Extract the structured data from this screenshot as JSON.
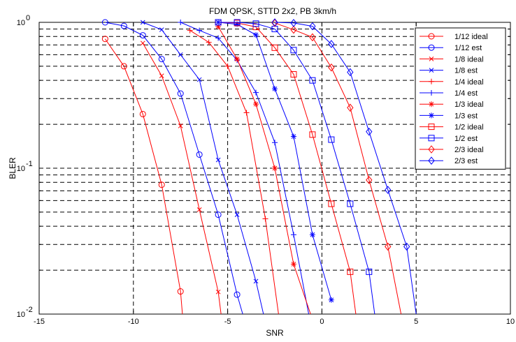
{
  "chart_data": {
    "type": "line",
    "title": "FDM QPSK, STTD 2x2, PB 3km/h",
    "xlabel": "SNR",
    "ylabel": "BLER",
    "xlim": [
      -15,
      10
    ],
    "ylim": [
      0.01,
      1
    ],
    "yscale": "log",
    "xticks": [
      -15,
      -10,
      -5,
      0,
      5,
      10
    ],
    "xtick_labels": [
      "-15",
      "-10",
      "-5",
      "0",
      "5",
      "10"
    ],
    "yticks": [
      0.01,
      0.1,
      1
    ],
    "ytick_labels": [
      {
        "base": "10",
        "exp": "-2"
      },
      {
        "base": "10",
        "exp": "-1"
      },
      {
        "base": "10",
        "exp": "0"
      }
    ],
    "grid": true,
    "legend_position": "top-right",
    "series": [
      {
        "name": "1/12 ideal",
        "color": "#ff0000",
        "marker": "circle",
        "x": [
          -11.5,
          -10.5,
          -9.5,
          -8.5,
          -7.5,
          -7.4
        ],
        "y": [
          0.77,
          0.5,
          0.235,
          0.077,
          0.0143,
          0.01
        ]
      },
      {
        "name": "1/12 est",
        "color": "#0000ff",
        "marker": "circle",
        "x": [
          -11.5,
          -10.5,
          -9.5,
          -8.5,
          -7.5,
          -6.5,
          -5.5,
          -4.5,
          -4.2
        ],
        "y": [
          1.0,
          0.945,
          0.815,
          0.56,
          0.325,
          0.124,
          0.048,
          0.0136,
          0.01
        ]
      },
      {
        "name": "1/8 ideal",
        "color": "#ff0000",
        "marker": "x",
        "x": [
          -9.5,
          -8.5,
          -7.5,
          -6.5,
          -5.5,
          -5.35
        ],
        "y": [
          0.72,
          0.43,
          0.195,
          0.052,
          0.0142,
          0.01
        ]
      },
      {
        "name": "1/8 est",
        "color": "#0000ff",
        "marker": "x",
        "x": [
          -9.5,
          -8.5,
          -7.5,
          -6.5,
          -5.5,
          -4.5,
          -3.5,
          -3.1
        ],
        "y": [
          1.0,
          0.89,
          0.6,
          0.405,
          0.114,
          0.048,
          0.0168,
          0.01
        ]
      },
      {
        "name": "1/4 ideal",
        "color": "#ff0000",
        "marker": "plus",
        "x": [
          -7.0,
          -6.0,
          -5.0,
          -4.0,
          -3.0,
          -2.3
        ],
        "y": [
          0.88,
          0.73,
          0.5,
          0.24,
          0.045,
          0.01
        ]
      },
      {
        "name": "1/4 est",
        "color": "#0000ff",
        "marker": "plus",
        "x": [
          -7.5,
          -6.5,
          -5.5,
          -4.5,
          -3.5,
          -2.5,
          -1.5,
          -0.7
        ],
        "y": [
          1.0,
          0.88,
          0.78,
          0.55,
          0.33,
          0.15,
          0.035,
          0.01
        ]
      },
      {
        "name": "1/3 ideal",
        "color": "#ff0000",
        "marker": "star",
        "x": [
          -5.5,
          -4.5,
          -3.5,
          -2.5,
          -1.5,
          -0.6
        ],
        "y": [
          0.935,
          0.56,
          0.275,
          0.1,
          0.022,
          0.01
        ]
      },
      {
        "name": "1/3 est",
        "color": "#0000ff",
        "marker": "star",
        "x": [
          -5.5,
          -4.5,
          -3.5,
          -2.5,
          -1.5,
          -0.5,
          0.5
        ],
        "y": [
          1.0,
          0.97,
          0.82,
          0.35,
          0.165,
          0.035,
          0.0125
        ]
      },
      {
        "name": "1/2 ideal",
        "color": "#ff0000",
        "marker": "square",
        "x": [
          -5.5,
          -4.5,
          -3.5,
          -2.5,
          -1.5,
          -0.5,
          0.5,
          1.5,
          1.8
        ],
        "y": [
          1.0,
          0.99,
          0.93,
          0.67,
          0.44,
          0.17,
          0.057,
          0.0195,
          0.01
        ]
      },
      {
        "name": "1/2 est",
        "color": "#0000ff",
        "marker": "square",
        "x": [
          -5.5,
          -4.5,
          -3.5,
          -2.5,
          -1.5,
          -0.5,
          0.5,
          1.5,
          2.5,
          2.8
        ],
        "y": [
          1.0,
          1.0,
          0.98,
          0.9,
          0.645,
          0.4,
          0.157,
          0.057,
          0.0195,
          0.01
        ]
      },
      {
        "name": "2/3 ideal",
        "color": "#ff0000",
        "marker": "diamond",
        "x": [
          -2.5,
          -1.5,
          -0.5,
          0.5,
          1.5,
          2.5,
          3.5,
          4.2
        ],
        "y": [
          0.99,
          0.89,
          0.79,
          0.49,
          0.26,
          0.083,
          0.029,
          0.01
        ]
      },
      {
        "name": "2/3 est",
        "color": "#0000ff",
        "marker": "diamond",
        "x": [
          -2.5,
          -1.5,
          -0.5,
          0.5,
          1.5,
          2.5,
          3.5,
          4.5,
          5.0
        ],
        "y": [
          1.0,
          0.99,
          0.94,
          0.71,
          0.455,
          0.178,
          0.071,
          0.029,
          0.01
        ]
      }
    ]
  }
}
